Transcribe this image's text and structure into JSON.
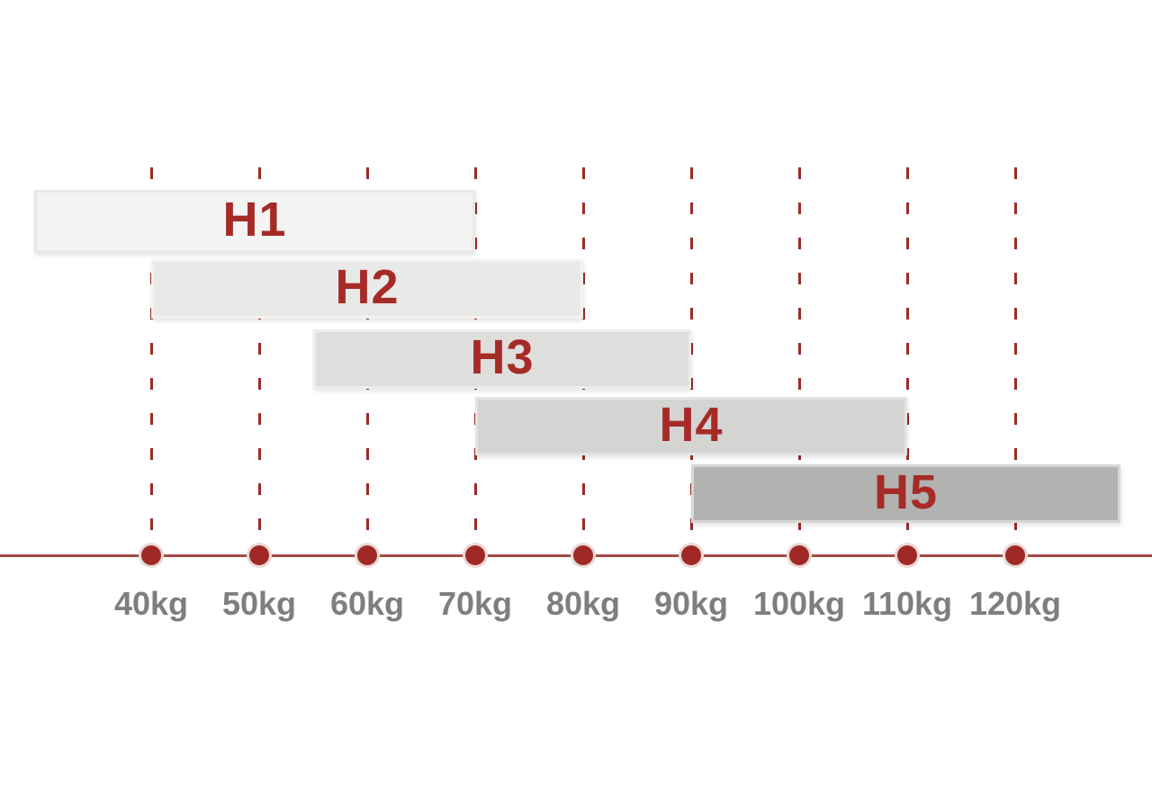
{
  "chart_data": {
    "type": "bar",
    "subtype": "horizontal-range-gantt",
    "title": "",
    "xlabel": "",
    "ylabel": "",
    "unit": "kg",
    "axis_range_kg": [
      40,
      120
    ],
    "grid": "dashed-vertical",
    "legend": "none",
    "x_axis": {
      "ticks_kg": [
        40,
        50,
        60,
        70,
        80,
        90,
        100,
        110,
        120
      ],
      "tick_labels": [
        "40kg",
        "50kg",
        "60kg",
        "70kg",
        "80kg",
        "90kg",
        "100kg",
        "110kg",
        "120kg"
      ]
    },
    "series": [
      {
        "label": "H1",
        "from_kg": null,
        "to_kg": 70,
        "extends_beyond_left_edge": true,
        "fill": "#f4f4f3",
        "border": "#e8e8e7"
      },
      {
        "label": "H2",
        "from_kg": 40,
        "to_kg": 80,
        "fill": "#e9e9e8",
        "border": "#f2f2f1"
      },
      {
        "label": "H3",
        "from_kg": 55,
        "to_kg": 90,
        "fill": "#dededd",
        "border": "#ececeb"
      },
      {
        "label": "H4",
        "from_kg": 70,
        "to_kg": 110,
        "fill": "#d4d4d3",
        "border": "#e4e4e3"
      },
      {
        "label": "H5",
        "from_kg": 90,
        "to_kg": null,
        "extends_beyond_right_edge": true,
        "fill": "#b2b2b1",
        "border": "#d6d6d5"
      }
    ],
    "colors": {
      "bar_label_red": "#a62b27",
      "gridline_red": "#9e2a27",
      "axis_line_red": "#a24b46",
      "dot_red": "#a02824",
      "dot_ring": "#e9d9d7",
      "tick_label_gray": "#7e7e7e"
    }
  }
}
